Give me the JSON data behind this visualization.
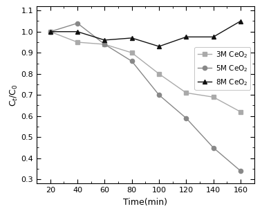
{
  "x": [
    20,
    40,
    60,
    80,
    100,
    120,
    140,
    160
  ],
  "series_3M": [
    1.0,
    0.95,
    0.94,
    0.9,
    0.8,
    0.71,
    0.69,
    0.62
  ],
  "series_5M": [
    1.0,
    1.04,
    0.94,
    0.86,
    0.7,
    0.59,
    0.45,
    0.34
  ],
  "series_8M": [
    1.0,
    1.0,
    0.96,
    0.97,
    0.93,
    0.975,
    0.975,
    1.05
  ],
  "color_3M": "#aaaaaa",
  "color_5M": "#888888",
  "color_8M": "#111111",
  "marker_3M": "s",
  "marker_5M": "o",
  "marker_8M": "^",
  "label_3M": "3M CeO$_2$",
  "label_5M": "5M CeO$_2$",
  "label_8M": "8M CeO$_2$",
  "xlabel": "Time(min)",
  "ylabel": "C$_t$/C$_0$",
  "xlim": [
    10,
    170
  ],
  "ylim": [
    0.28,
    1.12
  ],
  "xticks": [
    20,
    40,
    60,
    80,
    100,
    120,
    140,
    160
  ],
  "yticks": [
    0.3,
    0.4,
    0.5,
    0.6,
    0.7,
    0.8,
    0.9,
    1.0,
    1.1
  ],
  "linewidth": 1.0,
  "markersize": 4.5,
  "legend_loc": "right",
  "background_color": "#ffffff"
}
